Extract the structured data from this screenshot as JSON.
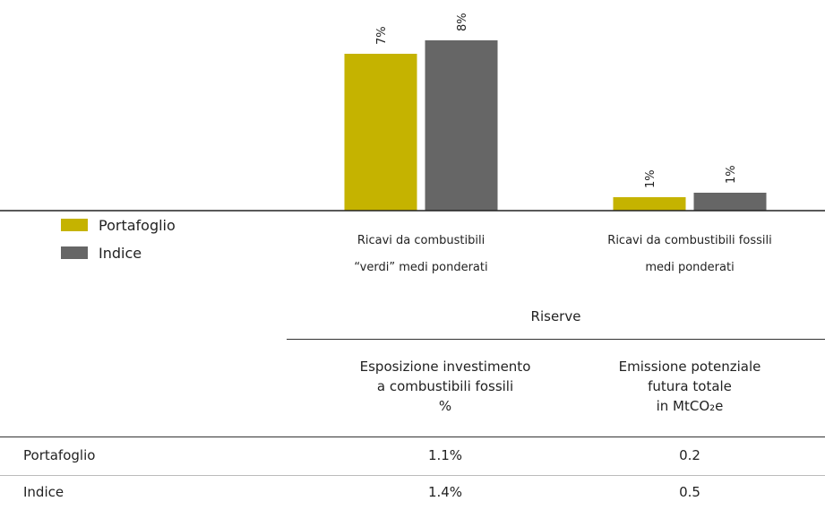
{
  "chart_data": {
    "type": "bar",
    "categories": [
      "Ricavi da combustibili “verdi” medi ponderati",
      "Ricavi da combustibili fossili medi ponderati"
    ],
    "series": [
      {
        "name": "Portafoglio",
        "color": "#c5b300",
        "values": [
          7,
          0.6
        ],
        "value_labels": [
          "7%",
          "1%"
        ]
      },
      {
        "name": "Indice",
        "color": "#666666",
        "values": [
          7.6,
          0.8
        ],
        "value_labels": [
          "8%",
          "1%"
        ]
      }
    ],
    "ylim": [
      0,
      9.4
    ]
  },
  "table": {
    "group_header": "Riserve",
    "columns": [
      "Esposizione investimento\na combustibili fossili\n%",
      "Emissione potenziale\nfutura totale\nin MtCO₂e"
    ],
    "rows": [
      [
        "Portafoglio",
        "1.1%",
        "0.2"
      ],
      [
        "Indice",
        "1.4%",
        "0.5"
      ]
    ]
  }
}
